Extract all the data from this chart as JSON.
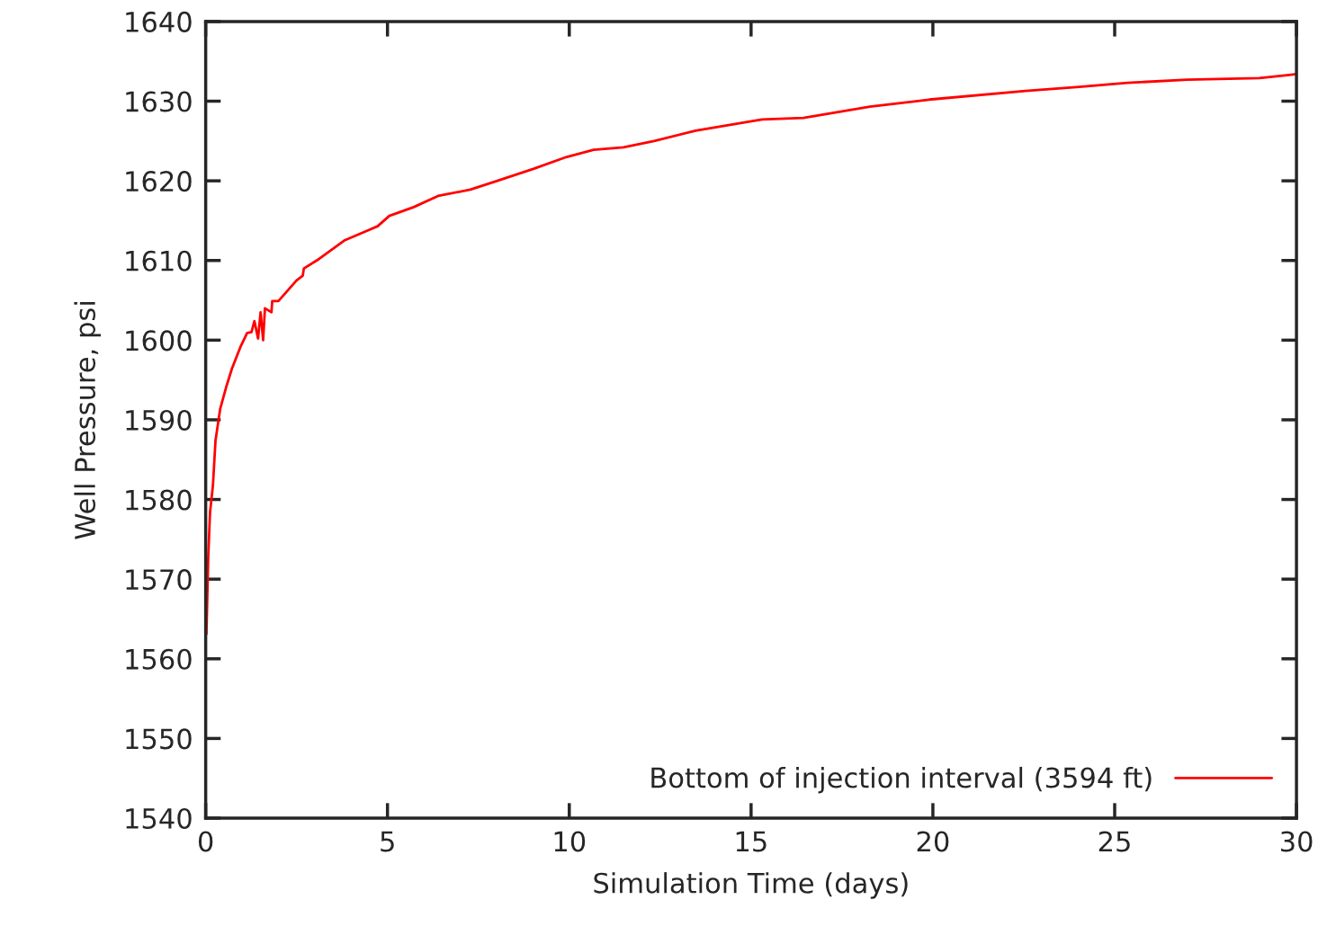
{
  "chart_data": {
    "type": "line",
    "xlabel": "Simulation Time (days)",
    "ylabel": "Well Pressure, psi",
    "xlim": [
      0,
      30
    ],
    "ylim": [
      1540,
      1640
    ],
    "xticks": [
      0,
      5,
      10,
      15,
      20,
      25,
      30
    ],
    "yticks": [
      1540,
      1550,
      1560,
      1570,
      1580,
      1590,
      1600,
      1610,
      1620,
      1630,
      1640
    ],
    "grid": false,
    "legend": "bottom right",
    "marker": "none",
    "line_style": "solid",
    "series": [
      {
        "name": "Bottom of injection interval (3594 ft)",
        "color": "#ff0000",
        "x": [
          0.02,
          0.07,
          0.12,
          0.2,
          0.27,
          0.4,
          0.57,
          0.72,
          0.97,
          1.14,
          1.26,
          1.34,
          1.44,
          1.51,
          1.58,
          1.63,
          1.81,
          1.83,
          2.0,
          2.5,
          2.67,
          2.7,
          3.12,
          3.81,
          4.73,
          5.05,
          5.72,
          6.39,
          7.28,
          8.02,
          9.01,
          9.93,
          10.67,
          11.49,
          12.33,
          13.47,
          15.3,
          16.44,
          18.27,
          19.9,
          22.55,
          24.03,
          25.35,
          27.0,
          28.98,
          29.8,
          30.0
        ],
        "values": [
          1563.1,
          1572.7,
          1578.4,
          1581.8,
          1587.4,
          1591.4,
          1594.2,
          1596.4,
          1599.3,
          1600.9,
          1601.0,
          1602.4,
          1600.2,
          1603.5,
          1600.0,
          1604.0,
          1603.5,
          1604.9,
          1604.9,
          1607.5,
          1608.1,
          1609.0,
          1610.2,
          1612.5,
          1614.3,
          1615.6,
          1616.7,
          1618.1,
          1618.9,
          1620.0,
          1621.5,
          1623.0,
          1623.9,
          1624.2,
          1625.0,
          1626.3,
          1627.7,
          1627.9,
          1629.3,
          1630.2,
          1631.3,
          1631.8,
          1632.3,
          1632.7,
          1632.9,
          1633.3,
          1633.4
        ]
      }
    ]
  }
}
